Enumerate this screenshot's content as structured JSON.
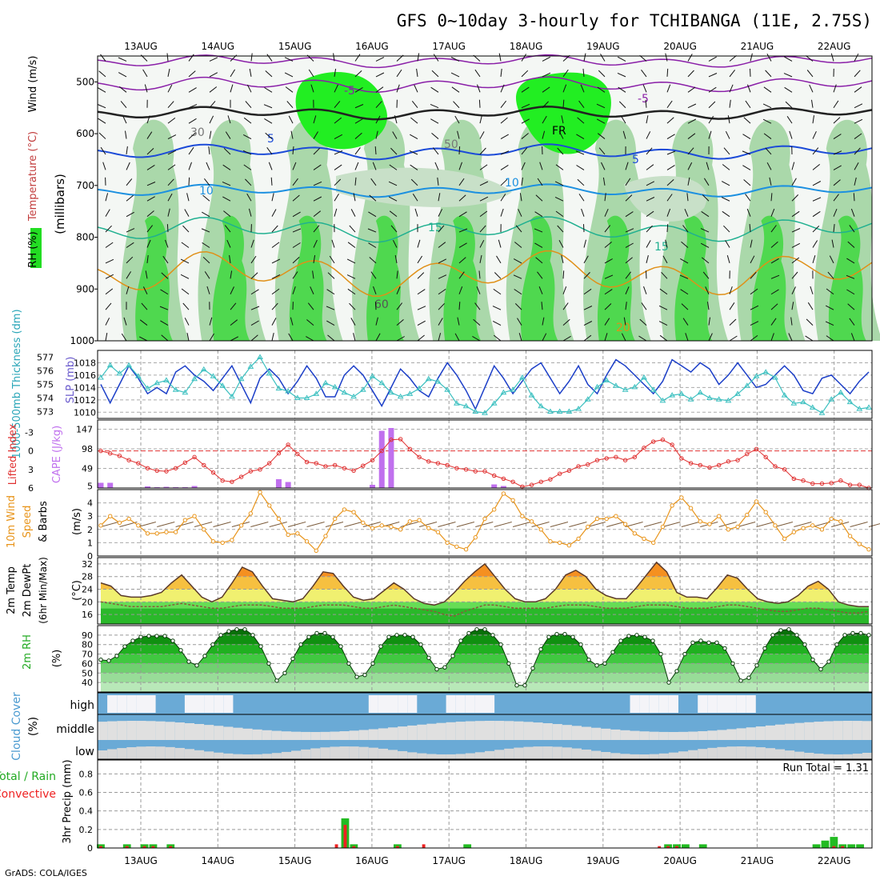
{
  "title": "GFS 0~10day 3-hourly for TCHIBANGA (11E, 2.75S)",
  "footer": "GrADS: COLA/IGES",
  "dates": [
    "13AUG",
    "14AUG",
    "15AUG",
    "16AUG",
    "17AUG",
    "18AUG",
    "19AUG",
    "20AUG",
    "21AUG",
    "22AUG"
  ],
  "colors": {
    "rh_green": "#22dd22",
    "temp_orange": "#ff8800",
    "cloud_blue": "#6aaad6",
    "precip_green": "#22bb22",
    "precip_red": "#ee2222"
  },
  "chart_data": [
    {
      "type": "heatmap",
      "name": "upper_air",
      "ylabel_parts": {
        "wind": "Wind (m/s)",
        "temp": "Temperature (°C)",
        "rh": "RH (%)",
        "units": "(millibars)"
      },
      "y_ticks": [
        "500",
        "600",
        "700",
        "800",
        "900",
        "1000"
      ],
      "ylim": [
        450,
        1000
      ],
      "contour_labels": [
        "-5",
        "-5",
        "FR",
        "5",
        "5",
        "10",
        "10",
        "15",
        "15",
        "20",
        "30",
        "50",
        "60"
      ]
    },
    {
      "type": "line",
      "name": "thickness_slp",
      "ylabel_parts": {
        "thickness": "1000-500mb Thickness (dm)",
        "slp": "SLP (mb)"
      },
      "y_ticks_left": [
        "577",
        "576",
        "575",
        "574",
        "573"
      ],
      "y_ticks_right": [
        "1018",
        "1016",
        "1014",
        "1012",
        "1010"
      ],
      "ylim_left": [
        572.5,
        577.5
      ],
      "ylim_right": [
        1009,
        1020
      ],
      "series": [
        {
          "name": "SLP",
          "values": [
            1014.5,
            1011.5,
            1014.5,
            1017.5,
            1015.5,
            1013,
            1014,
            1013,
            1016.5,
            1017.5,
            1016,
            1015,
            1013.5,
            1015.5,
            1017.5,
            1014.5,
            1011.5,
            1015.5,
            1017,
            1015.5,
            1013,
            1015,
            1017.5,
            1015.5,
            1012.5,
            1012.5,
            1016,
            1017.5,
            1016,
            1013.5,
            1011,
            1014,
            1017,
            1015.5,
            1013.5,
            1012.5,
            1015.5,
            1018,
            1016,
            1013.5,
            1010.5,
            1014,
            1017.5,
            1015.5,
            1013,
            1015,
            1017,
            1018,
            1015.5,
            1013,
            1015,
            1017.5,
            1014.5,
            1013,
            1016,
            1018.5,
            1017.5,
            1016,
            1014.5,
            1013,
            1015,
            1018.5,
            1017.5,
            1016.5,
            1018,
            1017,
            1014.5,
            1016,
            1018,
            1016,
            1014,
            1014.5,
            1016,
            1017.5,
            1016,
            1013.5,
            1013,
            1015.5,
            1016,
            1014.5,
            1013,
            1015,
            1016.5
          ]
        },
        {
          "name": "Thickness",
          "values": [
            575.5,
            576.4,
            575.8,
            576.4,
            575.6,
            574.7,
            575.1,
            575.3,
            574.6,
            574.4,
            575.4,
            576.1,
            575.6,
            574.9,
            574.1,
            575.4,
            576.3,
            577.0,
            575.8,
            574.7,
            574.5,
            574.0,
            574.0,
            574.3,
            575.1,
            574.8,
            574.4,
            574.1,
            574.6,
            575.6,
            575.1,
            574.4,
            574.1,
            574.3,
            574.7,
            575.4,
            575.2,
            574.6,
            573.6,
            573.4,
            573.0,
            572.9,
            573.6,
            574.4,
            574.6,
            575.5,
            574.2,
            573.4,
            573.0,
            573.0,
            573.0,
            573.2,
            573.9,
            574.8,
            575.3,
            574.9,
            574.6,
            574.8,
            575.5,
            574.6,
            573.8,
            574.2,
            574.3,
            573.9,
            574.4,
            574.0,
            573.9,
            573.8,
            574.3,
            574.9,
            575.6,
            575.9,
            575.5,
            574.2,
            573.6,
            573.7,
            573.3,
            572.9,
            573.9,
            574.4,
            573.7,
            573.2,
            573.3
          ]
        }
      ]
    },
    {
      "type": "bar",
      "name": "li_cape",
      "ylabel_parts": {
        "li": "Lifted Index",
        "cape": "CAPE (J/kg)"
      },
      "y_ticks_left": [
        "-3",
        "0",
        "3",
        "6"
      ],
      "y_ticks_right": [
        "147",
        "98",
        "49",
        "5"
      ],
      "series": [
        {
          "name": "Lifted Index",
          "values": [
            0,
            0.4,
            0.8,
            1.5,
            2.0,
            2.8,
            3.2,
            3.3,
            2.8,
            1.9,
            1.0,
            2.3,
            3.5,
            4.8,
            5.0,
            4.2,
            3.3,
            3.0,
            2.0,
            0.4,
            -1.0,
            0.5,
            1.8,
            2.0,
            2.5,
            2.3,
            2.8,
            3.2,
            2.4,
            1.5,
            0,
            -1.8,
            -1.9,
            -0.3,
            1.0,
            1.7,
            2.0,
            2.3,
            2.8,
            3.0,
            3.3,
            3.3,
            4.0,
            4.5,
            5.0,
            5.8,
            5.5,
            5.0,
            4.6,
            3.7,
            3.2,
            2.5,
            2.2,
            1.5,
            1.2,
            1.0,
            1.5,
            1.0,
            -0.5,
            -1.5,
            -1.8,
            -1.0,
            1.2,
            2.0,
            2.3,
            2.7,
            2.3,
            1.7,
            1.5,
            0.5,
            -0.3,
            1.0,
            2.5,
            3.0,
            4.5,
            4.8,
            5.3,
            5.3,
            5.2,
            4.8,
            5.5,
            5.5,
            6.0
          ]
        },
        {
          "name": "CAPE",
          "values": [
            13,
            13,
            0,
            0,
            0,
            4,
            2,
            3,
            2,
            2,
            5,
            0,
            0,
            0,
            0,
            0,
            0,
            0,
            0,
            22,
            15,
            0,
            0,
            0,
            0,
            0,
            0,
            0,
            0,
            8,
            143,
            150,
            0,
            0,
            0,
            0,
            0,
            0,
            0,
            0,
            0,
            0,
            9,
            5,
            0,
            0,
            0,
            0,
            0,
            0,
            0,
            0,
            0,
            0,
            0,
            0,
            0,
            0,
            0,
            0,
            0,
            0,
            0,
            0,
            0,
            0,
            0,
            0,
            0,
            0,
            0,
            0,
            0,
            0,
            0,
            0,
            0,
            0,
            0,
            0,
            0,
            0,
            0
          ]
        }
      ]
    },
    {
      "type": "line",
      "name": "wind10m",
      "ylabel_parts": {
        "a": "10m Wind",
        "b": "Speed",
        "c": "& Barbs",
        "units": "(m/s)"
      },
      "y_ticks": [
        "4",
        "3",
        "2",
        "1",
        "0"
      ],
      "ylim": [
        0,
        5
      ],
      "series": [
        {
          "name": "Wind Speed",
          "values": [
            2.3,
            3.0,
            2.5,
            2.8,
            2.3,
            1.7,
            1.7,
            1.8,
            1.8,
            2.7,
            3.0,
            2.0,
            1.1,
            1.0,
            1.2,
            2.3,
            3.2,
            4.8,
            3.8,
            2.8,
            1.6,
            1.7,
            1.1,
            0.4,
            1.5,
            2.8,
            3.5,
            3.3,
            2.5,
            2.1,
            2.3,
            2.2,
            2.0,
            2.6,
            2.7,
            2.1,
            1.8,
            1.0,
            0.7,
            0.5,
            1.4,
            2.8,
            3.5,
            4.7,
            4.2,
            3.0,
            2.6,
            2.0,
            1.1,
            1.0,
            0.8,
            1.3,
            2.2,
            2.8,
            2.8,
            3.0,
            2.4,
            1.7,
            1.3,
            1.0,
            2.2,
            3.8,
            4.4,
            3.6,
            2.6,
            2.4,
            3.0,
            2.0,
            2.2,
            3.1,
            4.1,
            3.3,
            2.3,
            1.3,
            1.8,
            2.1,
            2.3,
            2.0,
            2.8,
            2.6,
            1.5,
            0.9,
            0.5
          ]
        }
      ]
    },
    {
      "type": "area",
      "name": "temp_dewpt",
      "ylabel_parts": {
        "a": "2m Temp",
        "b": "2m DewPt",
        "c": "(6hr Min/Max)",
        "units": "(°C)"
      },
      "y_ticks": [
        "32",
        "28",
        "24",
        "20",
        "16"
      ],
      "ylim": [
        13,
        34
      ],
      "series": [
        {
          "name": "Temp",
          "values": [
            26,
            25,
            22,
            21.5,
            21.5,
            22,
            23,
            26,
            28.5,
            25,
            21.5,
            20,
            21.5,
            26,
            31,
            29.5,
            25,
            21,
            20.5,
            20,
            21,
            25,
            29.5,
            29,
            25,
            21.5,
            20.5,
            21,
            23.5,
            26,
            24,
            21,
            19.5,
            19,
            20,
            23,
            26.5,
            29.5,
            32,
            28,
            24,
            21,
            20,
            20,
            21,
            24,
            28.5,
            30,
            28,
            24,
            22,
            21,
            21,
            24.5,
            28.5,
            32.5,
            29.5,
            23,
            21.5,
            21.5,
            21,
            24.5,
            28.5,
            27.5,
            24,
            21,
            20,
            19.5,
            20,
            22,
            25,
            26.5,
            24,
            20,
            19,
            18.5,
            18.5
          ]
        },
        {
          "name": "DewPt",
          "values": [
            20,
            19.5,
            19,
            18.5,
            18.5,
            18.5,
            18.5,
            19,
            19.5,
            19,
            18.5,
            18,
            18,
            18.5,
            19,
            19,
            19,
            18.5,
            18,
            18,
            18,
            18.5,
            19,
            19,
            19,
            18.5,
            18,
            18,
            18.5,
            19,
            18.5,
            18,
            17.5,
            17,
            16,
            15.5,
            17,
            18,
            19,
            19,
            18.5,
            18,
            18,
            18,
            18,
            18.5,
            19,
            19,
            19,
            18.5,
            18,
            18,
            18,
            18.5,
            19,
            19,
            19,
            18.5,
            18,
            18,
            18,
            18.5,
            19,
            19,
            18.5,
            18,
            17.5,
            17,
            17,
            17.5,
            18,
            18,
            17.5,
            17,
            16.5,
            16.5,
            17
          ]
        }
      ]
    },
    {
      "type": "area",
      "name": "rh2m",
      "ylabel_parts": {
        "a": "2m RH",
        "units": "(%)"
      },
      "y_ticks": [
        "90",
        "80",
        "70",
        "60",
        "50",
        "40"
      ],
      "ylim": [
        30,
        100
      ],
      "series": [
        {
          "name": "RH",
          "values": [
            64,
            63,
            68,
            78,
            84,
            88,
            89,
            89,
            89,
            84,
            74,
            62,
            58,
            68,
            80,
            90,
            94,
            96,
            96,
            90,
            78,
            60,
            42,
            50,
            65,
            80,
            88,
            92,
            92,
            88,
            78,
            60,
            46,
            48,
            60,
            78,
            88,
            90,
            90,
            88,
            80,
            66,
            54,
            56,
            68,
            84,
            92,
            96,
            96,
            90,
            80,
            60,
            37,
            37,
            55,
            75,
            88,
            91,
            91,
            88,
            80,
            64,
            58,
            60,
            72,
            84,
            89,
            90,
            88,
            84,
            70,
            40,
            52,
            70,
            82,
            84,
            82,
            82,
            76,
            60,
            42,
            45,
            58,
            76,
            90,
            95,
            96,
            90,
            80,
            64,
            54,
            62,
            80,
            90,
            92,
            92,
            90
          ]
        }
      ]
    },
    {
      "type": "area",
      "name": "cloud_cover",
      "ylabel_parts": {
        "a": "Cloud Cover",
        "units": "(%)"
      },
      "levels": [
        "high",
        "middle",
        "low"
      ]
    },
    {
      "type": "bar",
      "name": "precip",
      "ylabel_parts": {
        "a": "Total / Rain",
        "b": "Convective",
        "units": "3hr Precip (mm)"
      },
      "y_ticks": [
        "0.8",
        "0.6",
        "0.4",
        "0.2",
        "0"
      ],
      "ylim": [
        0,
        0.95
      ],
      "run_total_label": "Run Total = 1.31",
      "series": [
        {
          "name": "Total",
          "values": [
            0.04,
            0,
            0,
            0.04,
            0,
            0.04,
            0.04,
            0,
            0.04,
            0,
            0,
            0,
            0,
            0,
            0,
            0,
            0,
            0,
            0,
            0,
            0,
            0,
            0,
            0,
            0,
            0,
            0,
            0,
            0.32,
            0.04,
            0,
            0,
            0,
            0,
            0.04,
            0,
            0,
            0,
            0,
            0,
            0,
            0,
            0.04,
            0,
            0,
            0,
            0,
            0,
            0,
            0,
            0,
            0,
            0,
            0,
            0,
            0,
            0,
            0,
            0,
            0,
            0,
            0,
            0,
            0,
            0,
            0.04,
            0.04,
            0.04,
            0,
            0.04,
            0,
            0,
            0,
            0,
            0,
            0,
            0,
            0,
            0,
            0,
            0,
            0,
            0.04,
            0.08,
            0.12,
            0.04,
            0.04,
            0.04,
            0
          ]
        },
        {
          "name": "Convective",
          "values": [
            0.02,
            0,
            0,
            0.02,
            0,
            0.02,
            0.02,
            0,
            0.02,
            0,
            0,
            0,
            0,
            0,
            0,
            0,
            0,
            0,
            0,
            0,
            0,
            0,
            0,
            0,
            0,
            0,
            0,
            0.04,
            0.25,
            0.02,
            0,
            0,
            0,
            0,
            0.02,
            0,
            0,
            0.04,
            0,
            0,
            0,
            0,
            0,
            0,
            0,
            0,
            0,
            0,
            0,
            0,
            0,
            0,
            0,
            0,
            0,
            0,
            0,
            0,
            0,
            0,
            0,
            0,
            0,
            0,
            0.02,
            0.02,
            0.02,
            0,
            0,
            0,
            0,
            0,
            0,
            0,
            0,
            0,
            0,
            0,
            0,
            0,
            0,
            0,
            0,
            0,
            0.02,
            0.02,
            0,
            0
          ]
        }
      ]
    }
  ]
}
